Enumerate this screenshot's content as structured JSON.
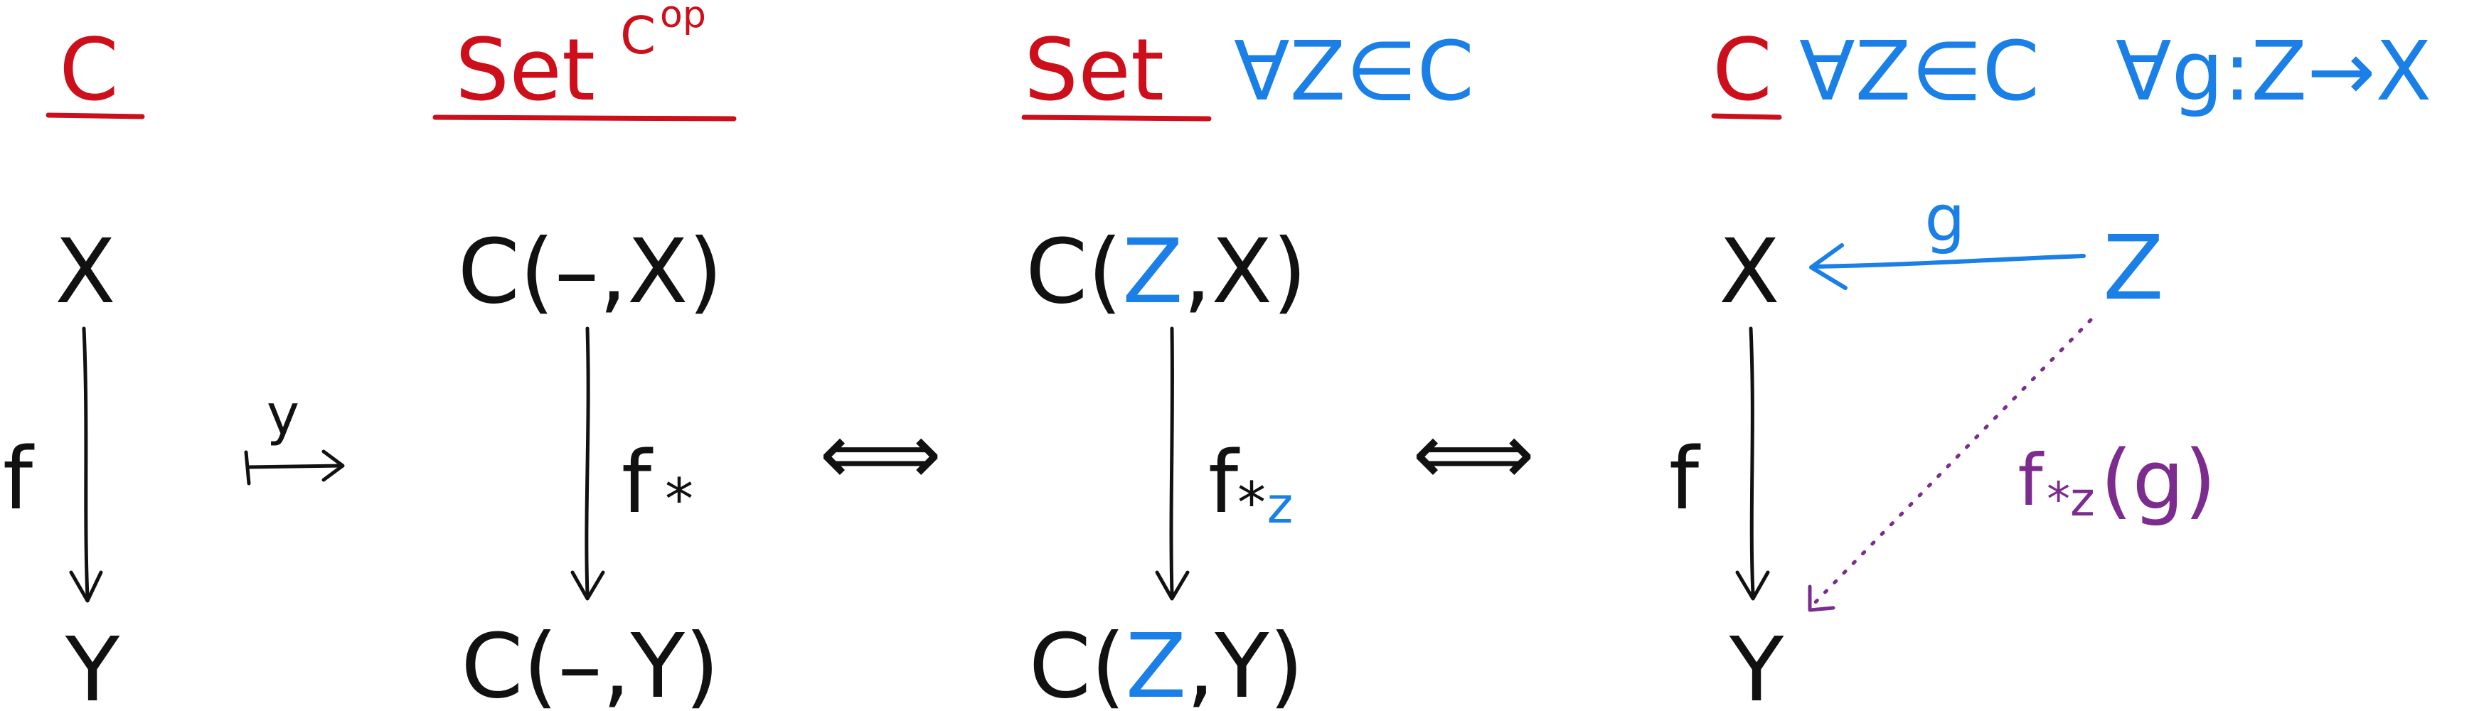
{
  "colors": {
    "ink": "#111111",
    "category": "#cc0f1b",
    "quantifier": "#1a7fe6",
    "pushforward": "#7b2c8e"
  },
  "panels": {
    "c": {
      "title": "C",
      "top": "X",
      "bottom": "Y",
      "arrow_label": "f"
    },
    "yoneda": {
      "label": "y"
    },
    "set_op": {
      "title": "Set",
      "title_sup": "C",
      "title_sup2": "op",
      "top": "C(–,X)",
      "bottom": "C(–,Y)",
      "arrow_label": "f",
      "arrow_label_sub": "*"
    },
    "equiv1": {
      "symbol": "⟺"
    },
    "set": {
      "title": "Set",
      "quantifier": "∀Z∈C",
      "top_prefix": "C(",
      "top_var": "Z",
      "top_suffix": ",X)",
      "bottom_prefix": "C(",
      "bottom_var": "Z",
      "bottom_suffix": ",Y)",
      "arrow_label": "f",
      "arrow_label_sub": "*",
      "arrow_label_sub2": "z"
    },
    "equiv2": {
      "symbol": "⟺"
    },
    "c2": {
      "title": "C",
      "quantifier": "∀Z∈C",
      "quantifier2": "∀g:Z→X",
      "top": "X",
      "bottom": "Y",
      "source": "Z",
      "arrow_label": "f",
      "g_label": "g",
      "composite_label": "f",
      "composite_label_sub": "*z",
      "composite_label_arg": "(g)"
    }
  }
}
